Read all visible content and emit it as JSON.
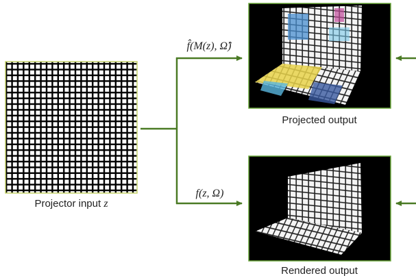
{
  "input": {
    "label": "Projector input",
    "variable": "z"
  },
  "projected": {
    "label": "Projected output",
    "edge": "f̂(M(z), Ω̂)"
  },
  "rendered": {
    "label": "Rendered output",
    "edge": "f(z, Ω)"
  }
}
